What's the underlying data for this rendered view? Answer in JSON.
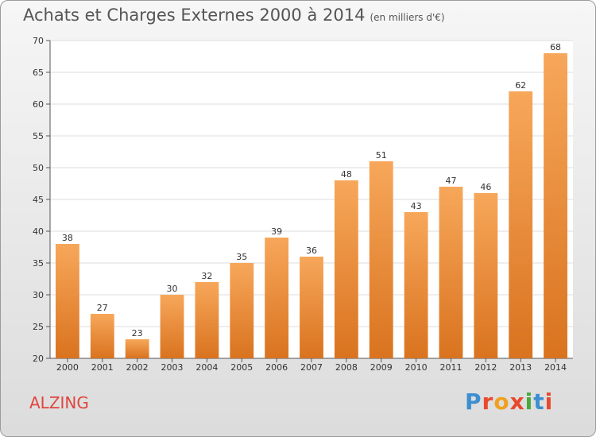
{
  "chart_data": {
    "type": "bar",
    "title": "Achats et Charges Externes 2000 à 2014",
    "subtitle": "(en milliers d'€)",
    "categories": [
      "2000",
      "2001",
      "2002",
      "2003",
      "2004",
      "2005",
      "2006",
      "2007",
      "2008",
      "2009",
      "2010",
      "2011",
      "2012",
      "2013",
      "2014"
    ],
    "values": [
      38,
      27,
      23,
      30,
      32,
      35,
      39,
      36,
      48,
      51,
      43,
      47,
      46,
      62,
      68
    ],
    "ylim": [
      20,
      70
    ],
    "yticks": [
      20,
      25,
      30,
      35,
      40,
      45,
      50,
      55,
      60,
      65,
      70
    ],
    "grid": true,
    "bar_color_top": "#f7a75a",
    "bar_color_bottom": "#d9731f"
  },
  "footer": {
    "place": "ALZING",
    "logo_text": "Proxiti",
    "logo_colors": [
      "#3c8fd1",
      "#e8492c",
      "#f0a020",
      "#e8492c",
      "#4aa83b",
      "#3c8fd1",
      "#e8492c"
    ]
  }
}
